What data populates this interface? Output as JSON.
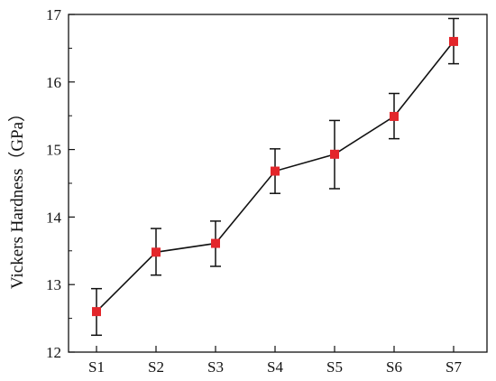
{
  "chart_data": {
    "type": "line",
    "title": "",
    "xlabel": "",
    "ylabel": "Vickers Hardness（GPa）",
    "categories": [
      "S1",
      "S2",
      "S3",
      "S4",
      "S5",
      "S6",
      "S7"
    ],
    "series": [
      {
        "values": [
          12.6,
          13.48,
          13.61,
          14.68,
          14.93,
          15.49,
          16.6
        ],
        "error_low": [
          12.25,
          13.14,
          13.27,
          14.35,
          14.42,
          15.16,
          16.27
        ],
        "error_high": [
          12.94,
          13.83,
          13.94,
          15.01,
          15.43,
          15.83,
          16.94
        ]
      }
    ],
    "ylim": [
      12,
      17
    ],
    "yticks": [
      12,
      13,
      14,
      15,
      16,
      17
    ],
    "grid": false,
    "legend": "none",
    "colors": {
      "marker": "#e3262b",
      "line": "#111111",
      "axis": "#111111"
    }
  }
}
